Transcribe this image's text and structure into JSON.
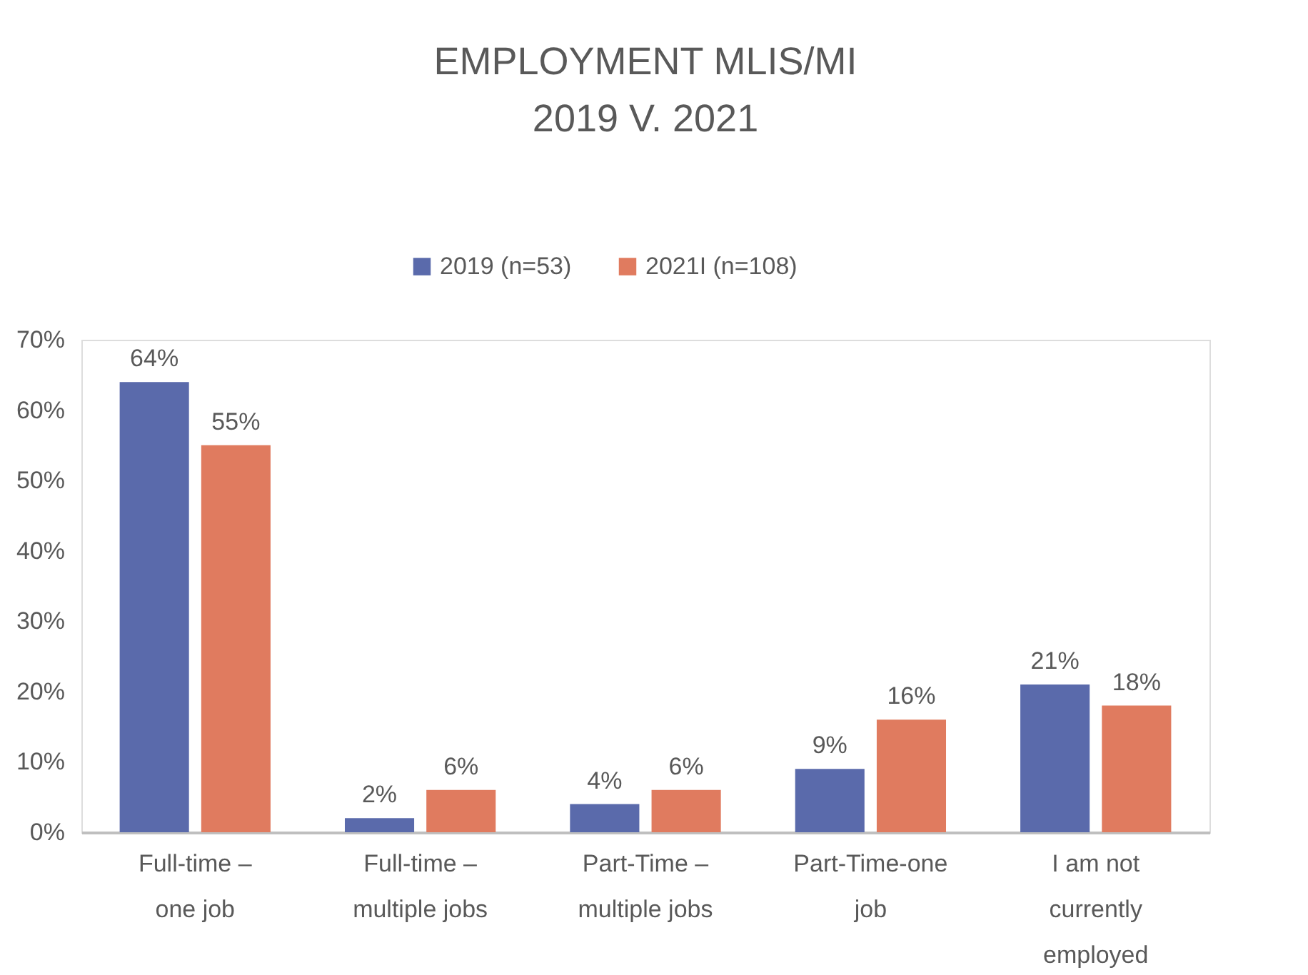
{
  "chart_data": {
    "type": "bar",
    "title": [
      "EMPLOYMENT MLIS/MI",
      "2019 V. 2021"
    ],
    "categories": [
      "Full-time – one job",
      "Full-time – multiple jobs",
      "Part-Time – multiple jobs",
      "Part-Time-one job",
      "I am not currently employed"
    ],
    "series": [
      {
        "name": "2019 (n=53)",
        "color": "#5a6aab",
        "values": [
          64,
          2,
          4,
          9,
          21
        ],
        "value_labels": [
          "64%",
          "2%",
          "4%",
          "9%",
          "21%"
        ]
      },
      {
        "name": "2021I (n=108)",
        "color": "#e07b5f",
        "values": [
          55,
          6,
          6,
          16,
          18
        ],
        "value_labels": [
          "55%",
          "6%",
          "6%",
          "16%",
          "18%"
        ]
      }
    ],
    "ylim": [
      0,
      70
    ],
    "yticks": [
      {
        "value": 0,
        "label": "0%"
      },
      {
        "value": 10,
        "label": "10%"
      },
      {
        "value": 20,
        "label": "20%"
      },
      {
        "value": 30,
        "label": "30%"
      },
      {
        "value": 40,
        "label": "40%"
      },
      {
        "value": 50,
        "label": "50%"
      },
      {
        "value": 60,
        "label": "60%"
      },
      {
        "value": 70,
        "label": "70%"
      }
    ],
    "grid": false,
    "legend": "top"
  }
}
